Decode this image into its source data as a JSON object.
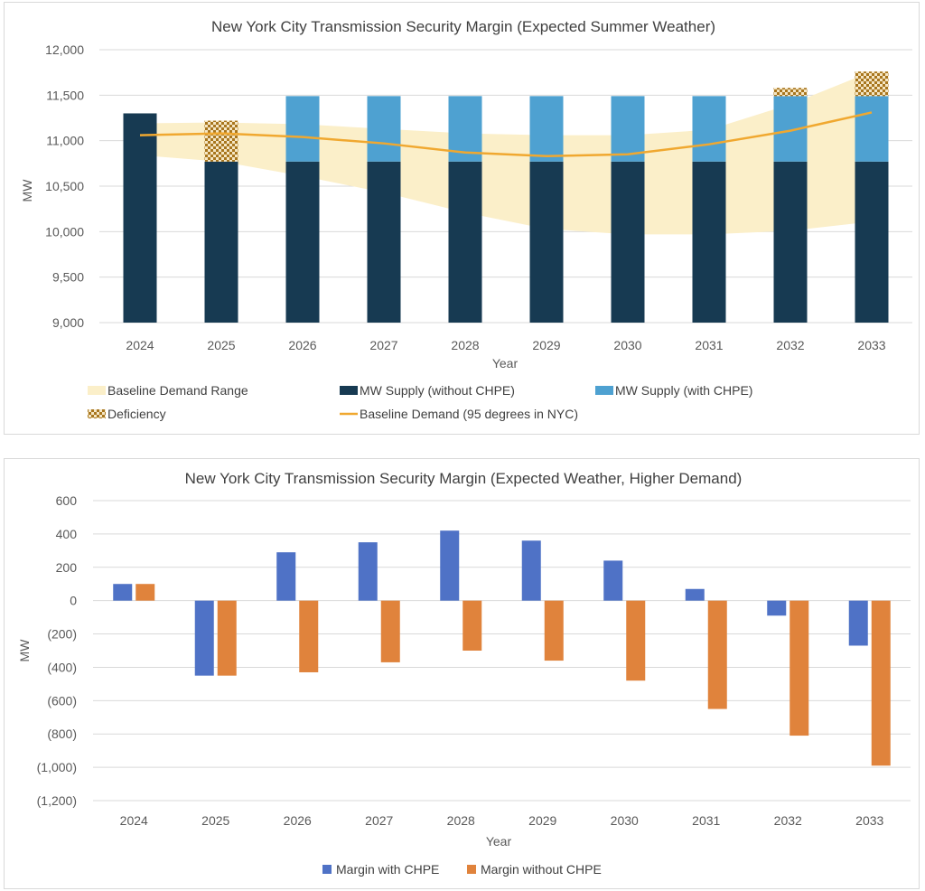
{
  "chart_data": [
    {
      "type": "bar",
      "title": "New York City Transmission Security Margin (Expected Summer Weather)",
      "xlabel": "Year",
      "ylabel": "MW",
      "ylim": [
        9000,
        12000
      ],
      "yticks": [
        "9,000",
        "9,500",
        "10,000",
        "10,500",
        "11,000",
        "11,500",
        "12,000"
      ],
      "ytick_values": [
        9000,
        9500,
        10000,
        10500,
        11000,
        11500,
        12000
      ],
      "grid": true,
      "legend_position": "bottom",
      "categories": [
        "2024",
        "2025",
        "2026",
        "2027",
        "2028",
        "2029",
        "2030",
        "2031",
        "2032",
        "2033"
      ],
      "series": [
        {
          "name": "Baseline Demand Range",
          "kind": "band",
          "color": "#fbefc9",
          "low": [
            10840,
            10770,
            10610,
            10430,
            10210,
            10030,
            9970,
            9970,
            10010,
            10110
          ],
          "high": [
            11190,
            11200,
            11180,
            11130,
            11080,
            11060,
            11060,
            11120,
            11400,
            11760
          ]
        },
        {
          "name": "MW Supply (without CHPE)",
          "kind": "bar",
          "color": "#173a52",
          "values": [
            11300,
            10770,
            10770,
            10770,
            10770,
            10770,
            10770,
            10770,
            10770,
            10770
          ]
        },
        {
          "name": "MW Supply (with CHPE)",
          "kind": "stacked-bar",
          "color": "#4ea1d1",
          "values": [
            0,
            0,
            720,
            720,
            720,
            720,
            720,
            720,
            720,
            720
          ]
        },
        {
          "name": "Deficiency",
          "kind": "stacked-bar-pattern",
          "color": "#b8862a",
          "values": [
            0,
            450,
            0,
            0,
            0,
            0,
            0,
            0,
            90,
            270
          ]
        },
        {
          "name": "Baseline Demand (95 degrees in NYC)",
          "kind": "line",
          "color": "#f0a830",
          "values": [
            11060,
            11080,
            11040,
            10970,
            10870,
            10830,
            10850,
            10960,
            11110,
            11310
          ]
        }
      ]
    },
    {
      "type": "bar",
      "title": "New York City Transmission Security Margin (Expected Weather, Higher Demand)",
      "xlabel": "Year",
      "ylabel": "MW",
      "ylim": [
        -1200,
        600
      ],
      "yticks": [
        "(1,200)",
        "(1,000)",
        "(800)",
        "(600)",
        "(400)",
        "(200)",
        "0",
        "200",
        "400",
        "600"
      ],
      "ytick_values": [
        -1200,
        -1000,
        -800,
        -600,
        -400,
        -200,
        0,
        200,
        400,
        600
      ],
      "grid": true,
      "legend_position": "bottom",
      "negative_tick_color": "#e02020",
      "categories": [
        "2024",
        "2025",
        "2026",
        "2027",
        "2028",
        "2029",
        "2030",
        "2031",
        "2032",
        "2033"
      ],
      "series": [
        {
          "name": "Margin with CHPE",
          "color": "#4f72c6",
          "values": [
            100,
            -450,
            290,
            350,
            420,
            360,
            240,
            70,
            -90,
            -270
          ]
        },
        {
          "name": "Margin without CHPE",
          "color": "#e0833c",
          "values": [
            100,
            -450,
            -430,
            -370,
            -300,
            -360,
            -480,
            -650,
            -810,
            -990
          ]
        }
      ]
    }
  ]
}
